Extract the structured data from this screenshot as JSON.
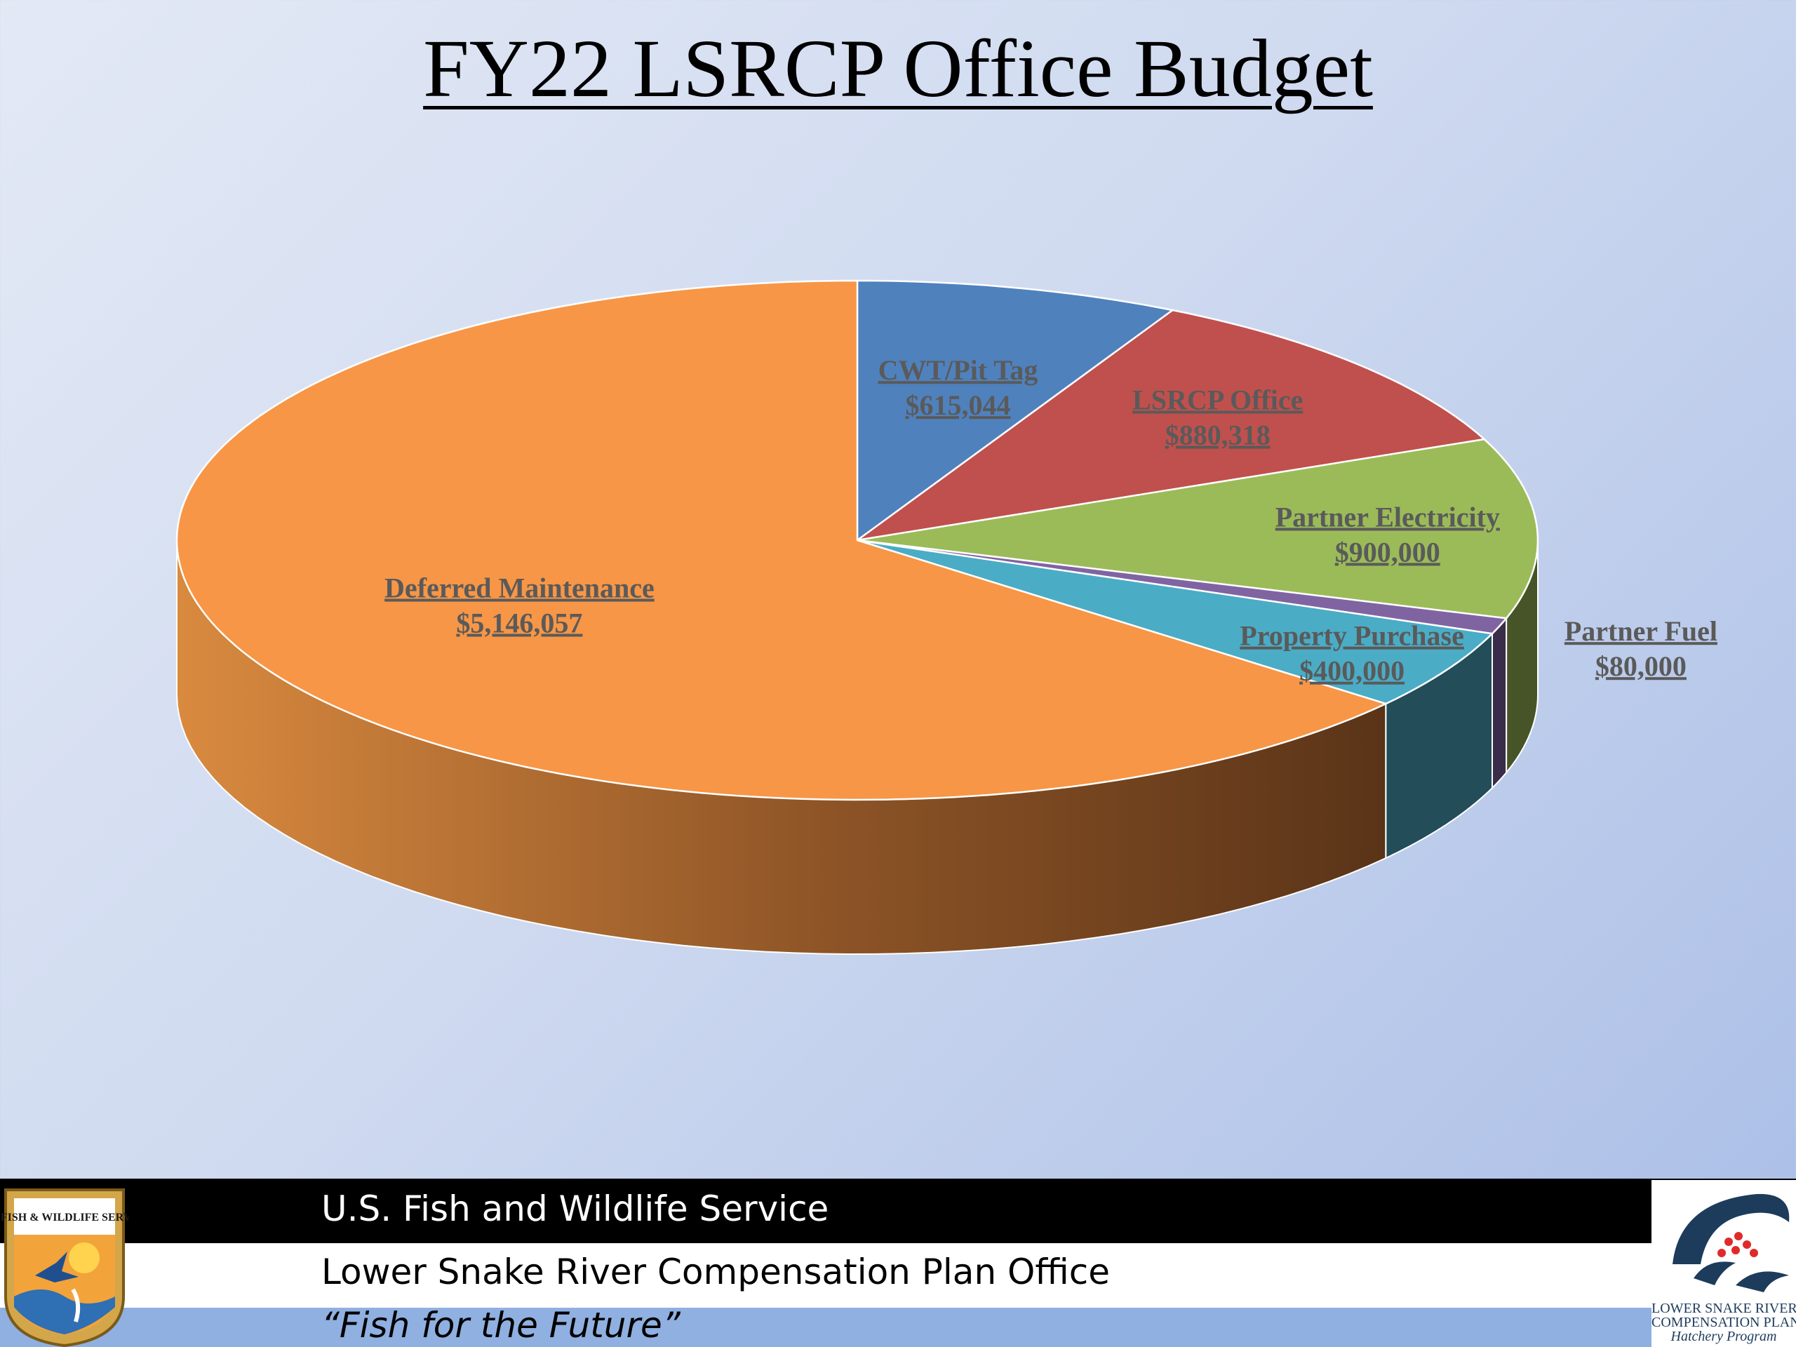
{
  "title": "FY22 LSRCP Office Budget",
  "footer": {
    "agency": "U.S. Fish and Wildlife Service",
    "office": "Lower Snake River Compensation Plan Office",
    "motto": "“Fish for the Future”",
    "seal_text": "U.S. FISH & WILDLIFE SERVICE",
    "program_logo_lines": [
      "LOWER SNAKE RIVER",
      "COMPENSATION PLAN",
      "Hatchery Program"
    ]
  },
  "chart_data": {
    "type": "pie",
    "title": "FY22 LSRCP Office Budget",
    "style": "3d",
    "labels_underlined": true,
    "slices": [
      {
        "label": "CWT/Pit Tag",
        "value": 615044,
        "value_label": "$615,044",
        "color": "#4f81bd"
      },
      {
        "label": "LSRCP Office",
        "value": 880318,
        "value_label": "$880,318",
        "color": "#c0504d"
      },
      {
        "label": "Partner Electricity",
        "value": 900000,
        "value_label": "$900,000",
        "color": "#9bbb59"
      },
      {
        "label": "Partner Fuel",
        "value": 80000,
        "value_label": "$80,000",
        "color": "#8064a2"
      },
      {
        "label": "Property Purchase",
        "value": 400000,
        "value_label": "$400,000",
        "color": "#4bacc6"
      },
      {
        "label": "Deferred Maintenance",
        "value": 5146057,
        "value_label": "$5,146,057",
        "color": "#f79646"
      }
    ]
  }
}
